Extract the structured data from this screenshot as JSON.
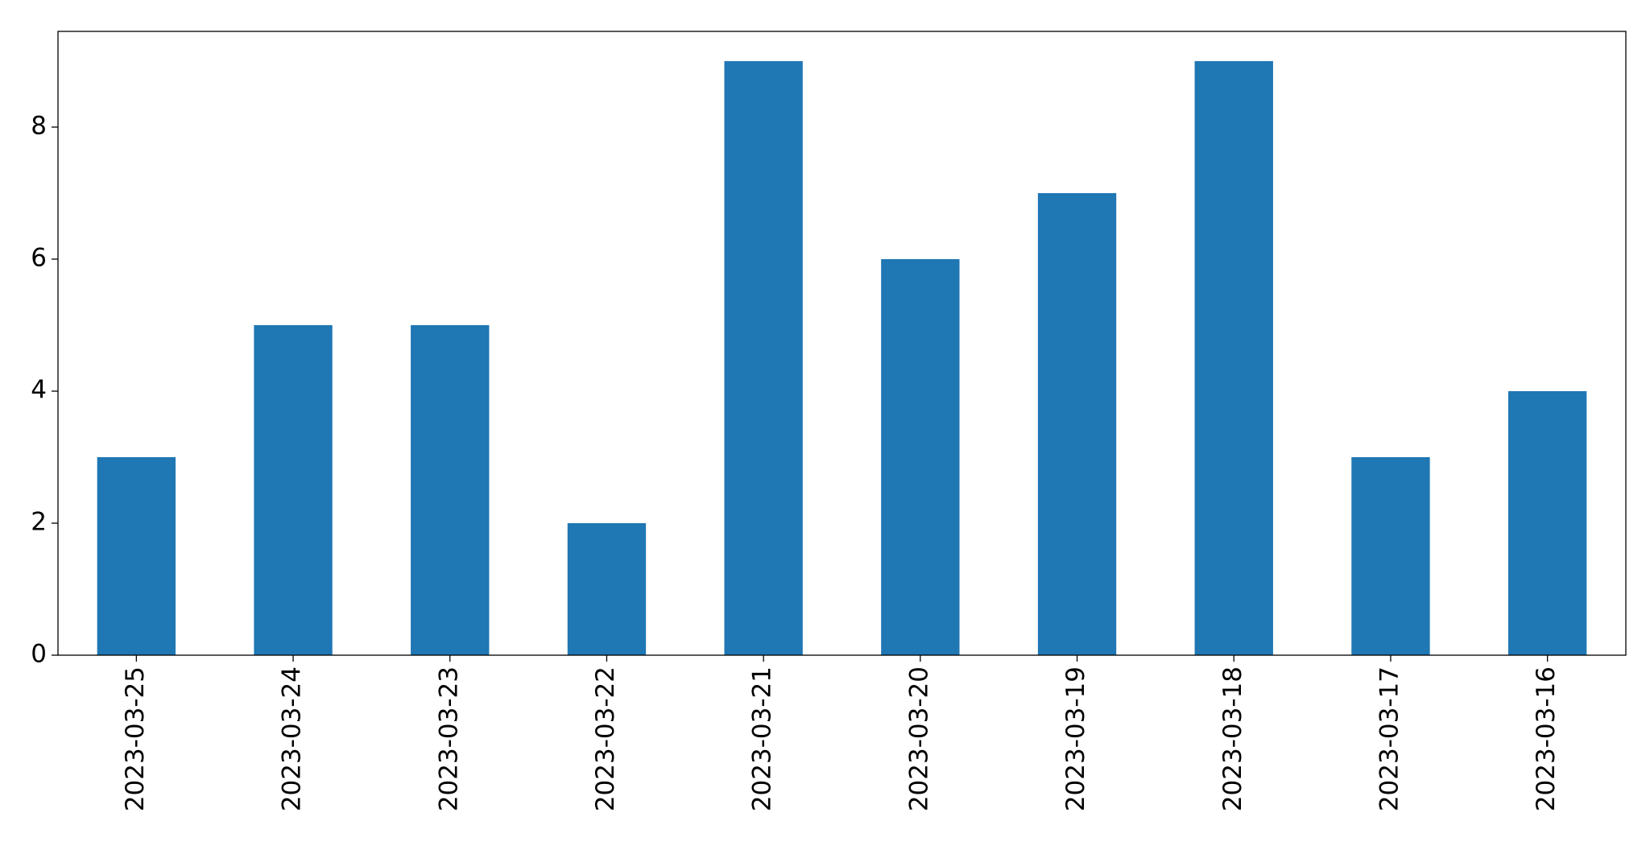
{
  "chart_data": {
    "type": "bar",
    "categories": [
      "2023-03-25",
      "2023-03-24",
      "2023-03-23",
      "2023-03-22",
      "2023-03-21",
      "2023-03-20",
      "2023-03-19",
      "2023-03-18",
      "2023-03-17",
      "2023-03-16"
    ],
    "values": [
      3,
      5,
      5,
      2,
      9,
      6,
      7,
      9,
      3,
      4
    ],
    "color": "#1f77b4",
    "ylim": [
      0,
      9.45
    ],
    "yticks": [
      0,
      2,
      4,
      6,
      8
    ],
    "grid": false
  }
}
